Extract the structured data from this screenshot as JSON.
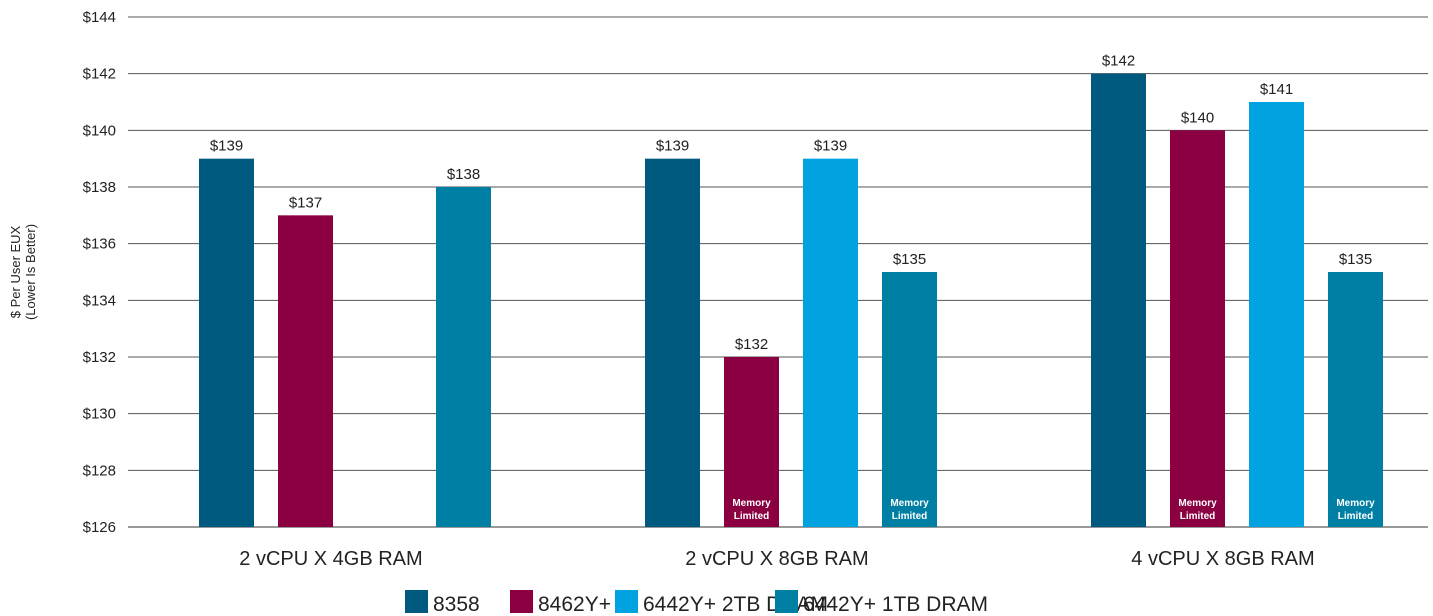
{
  "chart_data": {
    "type": "bar",
    "title": "",
    "ylabel_lines": [
      "$ Per User EUX",
      "(Lower Is Better)"
    ],
    "xlabel": "",
    "ylim": [
      126,
      144
    ],
    "yticks": [
      126,
      128,
      130,
      132,
      134,
      136,
      138,
      140,
      142,
      144
    ],
    "ytick_labels": [
      "$126",
      "$128",
      "$130",
      "$132",
      "$134",
      "$136",
      "$138",
      "$140",
      "$142",
      "$144"
    ],
    "grid": "horizontal",
    "legend_position": "bottom",
    "categories": [
      "2 vCPU X 4GB RAM",
      "2 vCPU X 8GB RAM",
      "4 vCPU X 8GB RAM"
    ],
    "series": [
      {
        "name": "8358",
        "color": "#005a7f",
        "values": [
          139,
          139,
          142
        ],
        "labels": [
          "$139",
          "$139",
          "$142"
        ],
        "notes": [
          null,
          null,
          null
        ]
      },
      {
        "name": "8462Y+",
        "color": "#8b0041",
        "values": [
          137,
          132,
          140
        ],
        "labels": [
          "$137",
          "$132",
          "$140"
        ],
        "notes": [
          null,
          "Memory Limited",
          "Memory Limited"
        ]
      },
      {
        "name": "6442Y+ 2TB DRAM",
        "color": "#00a3e0",
        "values": [
          null,
          139,
          141
        ],
        "labels": [
          null,
          "$139",
          "$141"
        ],
        "notes": [
          null,
          null,
          null
        ]
      },
      {
        "name": "6442Y+ 1TB DRAM",
        "color": "#007fa5",
        "values": [
          138,
          135,
          135
        ],
        "labels": [
          "$138",
          "$135",
          "$135"
        ],
        "notes": [
          null,
          "Memory Limited",
          "Memory Limited"
        ]
      }
    ]
  }
}
